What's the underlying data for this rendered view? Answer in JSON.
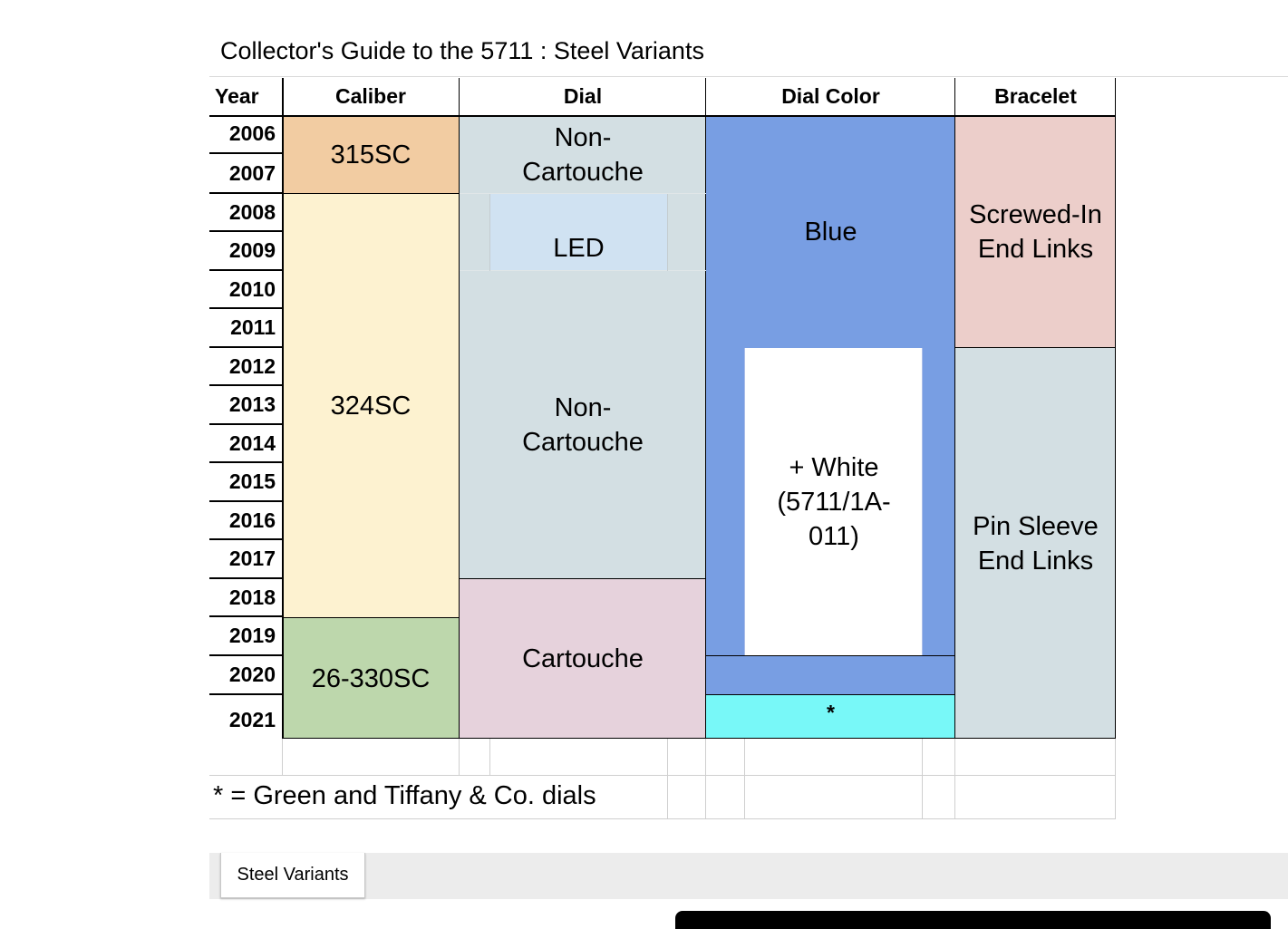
{
  "sheet": {
    "title": "Collector's Guide to the 5711 : Steel Variants",
    "headers": {
      "year": "Year",
      "caliber": "Caliber",
      "dial": "Dial",
      "dial_color": "Dial Color",
      "bracelet": "Bracelet"
    },
    "years": [
      "2006",
      "2007",
      "2008",
      "2009",
      "2010",
      "2011",
      "2012",
      "2013",
      "2014",
      "2015",
      "2016",
      "2017",
      "2018",
      "2019",
      "2020",
      "2021"
    ],
    "caliber": {
      "c315": "315SC",
      "c324": "324SC",
      "c26330": "26-330SC"
    },
    "dial": {
      "noncartouche_top": "Non-Cartouche",
      "led": "LED",
      "noncartouche_mid": "Non-Cartouche",
      "cartouche": "Cartouche"
    },
    "dial_color": {
      "blue": "Blue",
      "white": "+ White (5711/1A-011)",
      "asterisk": "*"
    },
    "bracelet": {
      "screwed": "Screwed-In End Links",
      "pin": "Pin Sleeve End Links"
    },
    "footnote": "* = Green and Tiffany & Co. dials"
  },
  "tabs": {
    "active": "Steel Variants"
  },
  "colors": {
    "caliber_315": "#f2cca2",
    "caliber_324": "#fdf2d0",
    "caliber_26330": "#bdd7ac",
    "dial_noncartouche": "#d3dfe3",
    "dial_led": "#d0e2f2",
    "dial_cartouche": "#e6d2dc",
    "blue": "#789ee3",
    "white": "#ffffff",
    "cyan": "#78f8f8",
    "bracelet_screwed": "#ecceca",
    "bracelet_pin": "#d3dfe3"
  }
}
